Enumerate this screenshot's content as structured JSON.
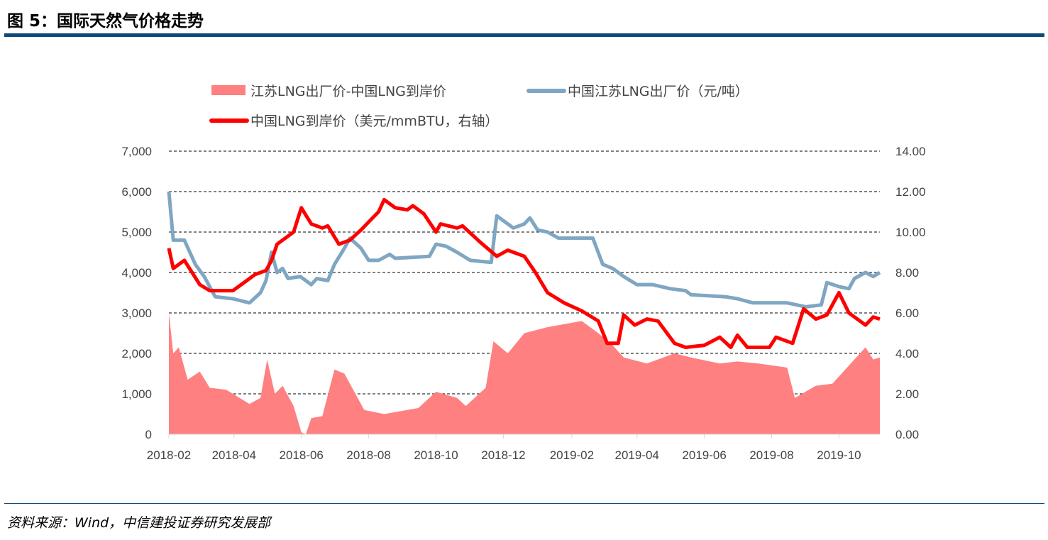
{
  "title": "图 5：国际天然气价格走势",
  "source": "资料来源：Wind，中信建投证券研究发展部",
  "chart_data": {
    "type": "line+area",
    "legend_position": "top",
    "grid": "horizontal dashed",
    "x_tick_labels": [
      "2018-02",
      "2018-04",
      "2018-06",
      "2018-08",
      "2018-10",
      "2018-12",
      "2019-02",
      "2019-04",
      "2019-06",
      "2019-08",
      "2019-10"
    ],
    "left_axis": {
      "ylim": [
        0,
        7000
      ],
      "ticks": [
        "0",
        "1,000",
        "2,000",
        "3,000",
        "4,000",
        "5,000",
        "6,000",
        "7,000"
      ]
    },
    "right_axis": {
      "ylim": [
        0,
        14
      ],
      "ticks": [
        "0.00",
        "2.00",
        "4.00",
        "6.00",
        "8.00",
        "10.00",
        "12.00",
        "14.00"
      ]
    },
    "series": [
      {
        "name": "江苏LNG出厂价-中国LNG到岸价",
        "type": "area",
        "axis": "left",
        "color": "#ff8080",
        "points": [
          [
            "2018-02-01",
            3000
          ],
          [
            "2018-02-05",
            2000
          ],
          [
            "2018-02-10",
            2150
          ],
          [
            "2018-02-18",
            1350
          ],
          [
            "2018-03-01",
            1550
          ],
          [
            "2018-03-10",
            1150
          ],
          [
            "2018-03-25",
            1100
          ],
          [
            "2018-04-15",
            750
          ],
          [
            "2018-04-25",
            900
          ],
          [
            "2018-05-01",
            1850
          ],
          [
            "2018-05-08",
            1000
          ],
          [
            "2018-05-15",
            1200
          ],
          [
            "2018-05-25",
            700
          ],
          [
            "2018-06-01",
            50
          ],
          [
            "2018-06-05",
            0
          ],
          [
            "2018-06-10",
            400
          ],
          [
            "2018-06-20",
            450
          ],
          [
            "2018-07-01",
            1600
          ],
          [
            "2018-07-10",
            1500
          ],
          [
            "2018-07-20",
            1000
          ],
          [
            "2018-07-28",
            600
          ],
          [
            "2018-08-15",
            500
          ],
          [
            "2018-09-15",
            650
          ],
          [
            "2018-10-01",
            1050
          ],
          [
            "2018-10-20",
            900
          ],
          [
            "2018-10-28",
            700
          ],
          [
            "2018-11-15",
            1150
          ],
          [
            "2018-11-22",
            2300
          ],
          [
            "2018-12-05",
            2000
          ],
          [
            "2018-12-20",
            2500
          ],
          [
            "2019-01-10",
            2650
          ],
          [
            "2019-02-10",
            2800
          ],
          [
            "2019-02-25",
            2500
          ],
          [
            "2019-03-10",
            2200
          ],
          [
            "2019-03-20",
            1900
          ],
          [
            "2019-04-10",
            1750
          ],
          [
            "2019-05-05",
            2000
          ],
          [
            "2019-05-20",
            1900
          ],
          [
            "2019-06-15",
            1750
          ],
          [
            "2019-07-01",
            1800
          ],
          [
            "2019-07-20",
            1750
          ],
          [
            "2019-08-15",
            1650
          ],
          [
            "2019-08-22",
            900
          ],
          [
            "2019-09-10",
            1200
          ],
          [
            "2019-09-25",
            1250
          ],
          [
            "2019-10-10",
            1700
          ],
          [
            "2019-10-25",
            2150
          ],
          [
            "2019-11-01",
            1850
          ],
          [
            "2019-11-07",
            1900
          ]
        ]
      },
      {
        "name": "中国江苏LNG出厂价（元/吨）",
        "type": "line",
        "axis": "left",
        "color": "#7fa6c2",
        "points": [
          [
            "2018-02-01",
            6000
          ],
          [
            "2018-02-05",
            4800
          ],
          [
            "2018-02-15",
            4800
          ],
          [
            "2018-02-25",
            4200
          ],
          [
            "2018-03-05",
            3900
          ],
          [
            "2018-03-15",
            3400
          ],
          [
            "2018-03-31",
            3350
          ],
          [
            "2018-04-15",
            3250
          ],
          [
            "2018-04-25",
            3500
          ],
          [
            "2018-04-30",
            3800
          ],
          [
            "2018-05-05",
            4500
          ],
          [
            "2018-05-10",
            4000
          ],
          [
            "2018-05-15",
            4100
          ],
          [
            "2018-05-20",
            3850
          ],
          [
            "2018-05-31",
            3900
          ],
          [
            "2018-06-10",
            3700
          ],
          [
            "2018-06-15",
            3850
          ],
          [
            "2018-06-25",
            3800
          ],
          [
            "2018-07-01",
            4200
          ],
          [
            "2018-07-10",
            4600
          ],
          [
            "2018-07-15",
            4850
          ],
          [
            "2018-07-25",
            4600
          ],
          [
            "2018-08-01",
            4300
          ],
          [
            "2018-08-10",
            4300
          ],
          [
            "2018-08-20",
            4450
          ],
          [
            "2018-08-25",
            4350
          ],
          [
            "2018-09-25",
            4400
          ],
          [
            "2018-10-01",
            4700
          ],
          [
            "2018-10-10",
            4650
          ],
          [
            "2018-10-20",
            4500
          ],
          [
            "2018-11-01",
            4300
          ],
          [
            "2018-11-20",
            4250
          ],
          [
            "2018-11-25",
            5400
          ],
          [
            "2018-12-05",
            5200
          ],
          [
            "2018-12-10",
            5100
          ],
          [
            "2018-12-20",
            5200
          ],
          [
            "2018-12-25",
            5350
          ],
          [
            "2019-01-01",
            5050
          ],
          [
            "2019-01-10",
            5000
          ],
          [
            "2019-01-20",
            4850
          ],
          [
            "2019-02-20",
            4850
          ],
          [
            "2019-03-01",
            4200
          ],
          [
            "2019-03-10",
            4100
          ],
          [
            "2019-03-20",
            3900
          ],
          [
            "2019-04-01",
            3700
          ],
          [
            "2019-04-15",
            3700
          ],
          [
            "2019-05-01",
            3600
          ],
          [
            "2019-05-15",
            3550
          ],
          [
            "2019-05-20",
            3450
          ],
          [
            "2019-06-20",
            3400
          ],
          [
            "2019-07-01",
            3350
          ],
          [
            "2019-07-15",
            3250
          ],
          [
            "2019-08-15",
            3250
          ],
          [
            "2019-09-01",
            3150
          ],
          [
            "2019-09-15",
            3200
          ],
          [
            "2019-09-20",
            3750
          ],
          [
            "2019-10-01",
            3650
          ],
          [
            "2019-10-10",
            3600
          ],
          [
            "2019-10-15",
            3850
          ],
          [
            "2019-10-25",
            4000
          ],
          [
            "2019-11-01",
            3900
          ],
          [
            "2019-11-07",
            4000
          ]
        ]
      },
      {
        "name": "中国LNG到岸价（美元/mmBTU，右轴）",
        "type": "line",
        "axis": "right",
        "color": "#ff0000",
        "points": [
          [
            "2018-02-01",
            9.2
          ],
          [
            "2018-02-05",
            8.2
          ],
          [
            "2018-02-15",
            8.6
          ],
          [
            "2018-03-01",
            7.4
          ],
          [
            "2018-03-10",
            7.1
          ],
          [
            "2018-03-31",
            7.1
          ],
          [
            "2018-04-10",
            7.5
          ],
          [
            "2018-04-20",
            7.9
          ],
          [
            "2018-04-30",
            8.1
          ],
          [
            "2018-05-05",
            8.6
          ],
          [
            "2018-05-10",
            9.4
          ],
          [
            "2018-05-25",
            10.0
          ],
          [
            "2018-06-01",
            11.2
          ],
          [
            "2018-06-10",
            10.4
          ],
          [
            "2018-06-20",
            10.2
          ],
          [
            "2018-06-25",
            10.3
          ],
          [
            "2018-07-05",
            9.4
          ],
          [
            "2018-07-15",
            9.6
          ],
          [
            "2018-07-25",
            10.1
          ],
          [
            "2018-08-01",
            10.5
          ],
          [
            "2018-08-10",
            11.0
          ],
          [
            "2018-08-15",
            11.6
          ],
          [
            "2018-08-25",
            11.2
          ],
          [
            "2018-09-05",
            11.1
          ],
          [
            "2018-09-10",
            11.3
          ],
          [
            "2018-09-20",
            10.9
          ],
          [
            "2018-10-01",
            10.0
          ],
          [
            "2018-10-05",
            10.4
          ],
          [
            "2018-10-20",
            10.2
          ],
          [
            "2018-10-25",
            10.3
          ],
          [
            "2018-11-10",
            9.5
          ],
          [
            "2018-11-25",
            8.8
          ],
          [
            "2018-12-05",
            9.1
          ],
          [
            "2018-12-20",
            8.8
          ],
          [
            "2018-12-30",
            8.0
          ],
          [
            "2019-01-10",
            7.0
          ],
          [
            "2019-01-25",
            6.5
          ],
          [
            "2019-02-10",
            6.1
          ],
          [
            "2019-02-25",
            5.6
          ],
          [
            "2019-03-05",
            4.5
          ],
          [
            "2019-03-15",
            4.5
          ],
          [
            "2019-03-20",
            5.9
          ],
          [
            "2019-03-30",
            5.4
          ],
          [
            "2019-04-10",
            5.7
          ],
          [
            "2019-04-20",
            5.6
          ],
          [
            "2019-05-05",
            4.5
          ],
          [
            "2019-05-15",
            4.3
          ],
          [
            "2019-06-01",
            4.4
          ],
          [
            "2019-06-15",
            4.8
          ],
          [
            "2019-06-25",
            4.3
          ],
          [
            "2019-07-01",
            4.9
          ],
          [
            "2019-07-10",
            4.3
          ],
          [
            "2019-07-30",
            4.3
          ],
          [
            "2019-08-05",
            4.8
          ],
          [
            "2019-08-20",
            4.5
          ],
          [
            "2019-08-30",
            6.2
          ],
          [
            "2019-09-10",
            5.7
          ],
          [
            "2019-09-20",
            5.9
          ],
          [
            "2019-10-01",
            7.0
          ],
          [
            "2019-10-10",
            6.0
          ],
          [
            "2019-10-20",
            5.6
          ],
          [
            "2019-10-25",
            5.4
          ],
          [
            "2019-11-01",
            5.8
          ],
          [
            "2019-11-07",
            5.7
          ]
        ]
      }
    ]
  }
}
